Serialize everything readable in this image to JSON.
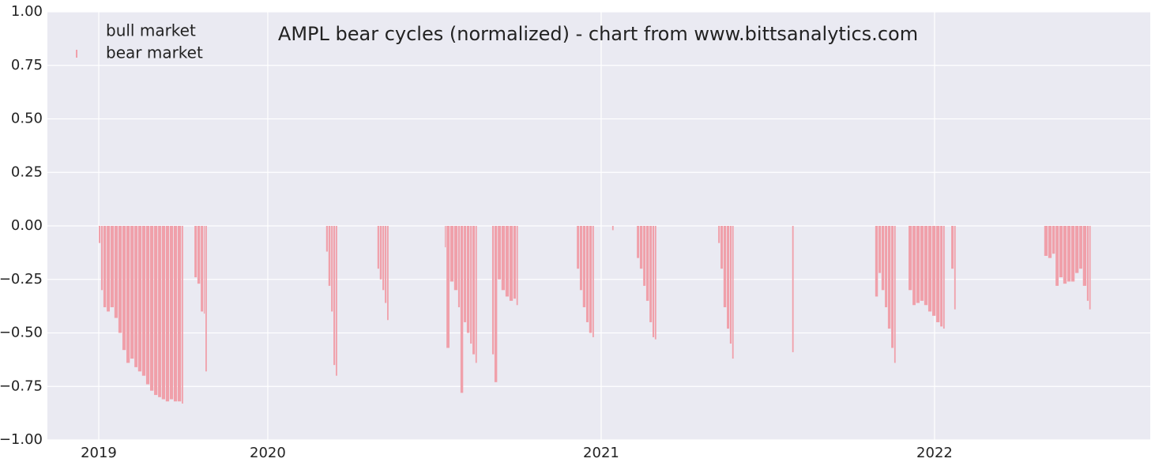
{
  "chart_data": {
    "type": "bar",
    "title": "AMPL bear cycles (normalized)  - chart from www.bittsanalytics.com",
    "xlim": [
      2019.339,
      2022.647
    ],
    "xticks": [
      {
        "value": 2019.493,
        "label": "2019"
      },
      {
        "value": 2020,
        "label": "2020"
      },
      {
        "value": 2021,
        "label": "2021"
      },
      {
        "value": 2022,
        "label": "2022"
      }
    ],
    "ylim": [
      -1,
      1
    ],
    "yticks": [
      {
        "value": -1,
        "label": "−1.00"
      },
      {
        "value": -0.75,
        "label": "−0.75"
      },
      {
        "value": -0.5,
        "label": "−0.50"
      },
      {
        "value": -0.25,
        "label": "−0.25"
      },
      {
        "value": 0,
        "label": "0.00"
      },
      {
        "value": 0.25,
        "label": "0.25"
      },
      {
        "value": 0.5,
        "label": "0.50"
      },
      {
        "value": 0.75,
        "label": "0.75"
      },
      {
        "value": 1,
        "label": "1.00"
      }
    ],
    "grid": true,
    "legend": "upper left",
    "series": [
      {
        "name": "bull market",
        "color": "#eaeaf2",
        "x": [],
        "values": []
      },
      {
        "name": "bear market",
        "color": "#f0a0aa",
        "x": [
          2019.493,
          2019.5,
          2019.507,
          2019.517,
          2019.528,
          2019.54,
          2019.552,
          2019.564,
          2019.576,
          2019.588,
          2019.6,
          2019.611,
          2019.623,
          2019.635,
          2019.647,
          2019.659,
          2019.671,
          2019.682,
          2019.694,
          2019.706,
          2019.718,
          2019.73,
          2019.742,
          2019.78,
          2019.789,
          2019.799,
          2019.808,
          2019.813,
          2020.175,
          2020.182,
          2020.19,
          2020.197,
          2020.204,
          2020.329,
          2020.336,
          2020.344,
          2020.351,
          2020.358,
          2020.531,
          2020.536,
          2020.547,
          2020.559,
          2020.571,
          2020.578,
          2020.588,
          2020.597,
          2020.607,
          2020.614,
          2020.623,
          2020.673,
          2020.68,
          2020.69,
          2020.701,
          2020.713,
          2020.725,
          2020.737,
          2020.746,
          2020.927,
          2020.936,
          2020.945,
          2020.955,
          2020.964,
          2020.974,
          2021.033,
          2021.107,
          2021.116,
          2021.126,
          2021.135,
          2021.145,
          2021.154,
          2021.161,
          2021.351,
          2021.358,
          2021.367,
          2021.377,
          2021.386,
          2021.393,
          2021.573,
          2021.822,
          2021.832,
          2021.841,
          2021.851,
          2021.86,
          2021.87,
          2021.879,
          2021.922,
          2021.934,
          2021.945,
          2021.957,
          2021.969,
          2021.981,
          2021.993,
          2022.005,
          2022.017,
          2022.026,
          2022.05,
          2022.059,
          2022.329,
          2022.341,
          2022.353,
          2022.363,
          2022.374,
          2022.386,
          2022.398,
          2022.41,
          2022.422,
          2022.434,
          2022.445,
          2022.457,
          2022.464
        ],
        "values": [
          -0.08,
          -0.3,
          -0.38,
          -0.4,
          -0.38,
          -0.43,
          -0.5,
          -0.58,
          -0.64,
          -0.62,
          -0.66,
          -0.68,
          -0.7,
          -0.74,
          -0.77,
          -0.79,
          -0.8,
          -0.81,
          -0.82,
          -0.81,
          -0.82,
          -0.82,
          -0.83,
          -0.24,
          -0.27,
          -0.4,
          -0.41,
          -0.68,
          -0.12,
          -0.28,
          -0.4,
          -0.65,
          -0.7,
          -0.2,
          -0.25,
          -0.3,
          -0.36,
          -0.44,
          -0.1,
          -0.57,
          -0.26,
          -0.3,
          -0.38,
          -0.78,
          -0.45,
          -0.5,
          -0.55,
          -0.6,
          -0.64,
          -0.6,
          -0.73,
          -0.25,
          -0.3,
          -0.33,
          -0.35,
          -0.34,
          -0.37,
          -0.2,
          -0.3,
          -0.38,
          -0.45,
          -0.5,
          -0.52,
          -0.02,
          -0.15,
          -0.2,
          -0.28,
          -0.35,
          -0.45,
          -0.52,
          -0.53,
          -0.08,
          -0.2,
          -0.38,
          -0.48,
          -0.55,
          -0.62,
          -0.59,
          -0.33,
          -0.22,
          -0.3,
          -0.38,
          -0.48,
          -0.57,
          -0.64,
          -0.3,
          -0.37,
          -0.36,
          -0.35,
          -0.37,
          -0.4,
          -0.42,
          -0.45,
          -0.47,
          -0.48,
          -0.2,
          -0.39,
          -0.14,
          -0.15,
          -0.13,
          -0.28,
          -0.24,
          -0.27,
          -0.26,
          -0.26,
          -0.22,
          -0.2,
          -0.28,
          -0.35,
          -0.39
        ]
      }
    ]
  }
}
